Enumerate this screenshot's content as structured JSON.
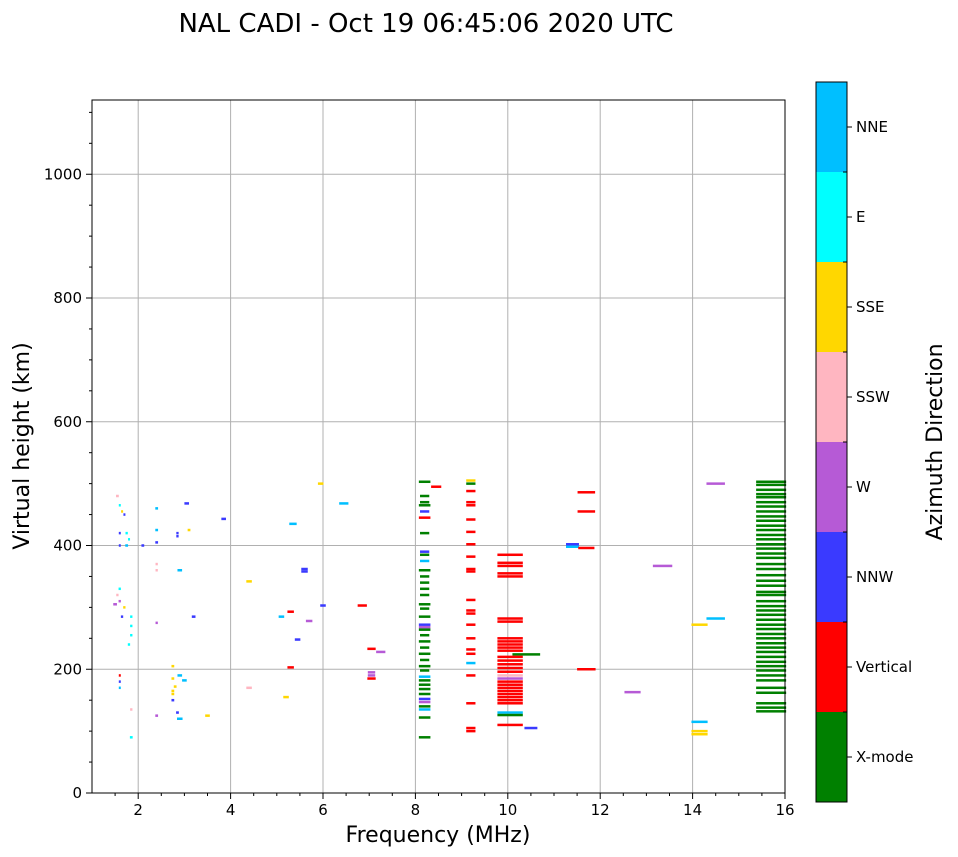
{
  "chart_data": {
    "type": "scatter",
    "title": "NAL CADI - Oct 19 06:45:06 2020 UTC",
    "xlabel": "Frequency (MHz)",
    "ylabel": "Virtual height (km)",
    "xlim": [
      1,
      16
    ],
    "ylim": [
      0,
      1120
    ],
    "x_ticks": [
      2,
      4,
      6,
      8,
      10,
      12,
      14,
      16
    ],
    "y_ticks": [
      0,
      200,
      400,
      600,
      800,
      1000
    ],
    "grid": true,
    "colorbar": {
      "label": "Azimuth Direction",
      "categories": [
        {
          "name": "X-mode",
          "color": "#008000"
        },
        {
          "name": "Vertical",
          "color": "#ff0000"
        },
        {
          "name": "NNW",
          "color": "#3a3aff"
        },
        {
          "name": "W",
          "color": "#b65ad6"
        },
        {
          "name": "SSW",
          "color": "#ffb6c1"
        },
        {
          "name": "SSE",
          "color": "#ffd700"
        },
        {
          "name": "E",
          "color": "#00ffff"
        },
        {
          "name": "NNE",
          "color": "#00bfff"
        }
      ]
    },
    "note": "Each point: [frequency MHz, virtual height km, frequency width MHz, category index]",
    "points": [
      [
        1.55,
        480,
        0.06,
        4
      ],
      [
        1.6,
        465,
        0.04,
        6
      ],
      [
        1.65,
        455,
        0.04,
        5
      ],
      [
        1.7,
        450,
        0.04,
        2
      ],
      [
        1.6,
        420,
        0.04,
        2
      ],
      [
        1.75,
        420,
        0.05,
        6
      ],
      [
        1.6,
        400,
        0.04,
        2
      ],
      [
        1.8,
        410,
        0.04,
        6
      ],
      [
        1.75,
        400,
        0.06,
        7
      ],
      [
        1.6,
        330,
        0.05,
        6
      ],
      [
        1.55,
        320,
        0.05,
        4
      ],
      [
        1.6,
        310,
        0.05,
        3
      ],
      [
        1.5,
        305,
        0.08,
        3
      ],
      [
        1.7,
        300,
        0.05,
        5
      ],
      [
        1.85,
        285,
        0.05,
        6
      ],
      [
        1.65,
        285,
        0.05,
        2
      ],
      [
        1.85,
        270,
        0.05,
        6
      ],
      [
        1.85,
        255,
        0.05,
        6
      ],
      [
        1.8,
        240,
        0.05,
        6
      ],
      [
        1.6,
        190,
        0.04,
        1
      ],
      [
        1.6,
        180,
        0.04,
        2
      ],
      [
        1.6,
        170,
        0.04,
        7
      ],
      [
        1.85,
        135,
        0.05,
        4
      ],
      [
        1.85,
        90,
        0.06,
        6
      ],
      [
        2.4,
        460,
        0.06,
        7
      ],
      [
        2.4,
        425,
        0.06,
        7
      ],
      [
        2.4,
        405,
        0.06,
        2
      ],
      [
        2.1,
        400,
        0.06,
        2
      ],
      [
        2.4,
        370,
        0.05,
        4
      ],
      [
        2.4,
        360,
        0.05,
        4
      ],
      [
        2.4,
        275,
        0.05,
        3
      ],
      [
        2.4,
        125,
        0.06,
        3
      ],
      [
        3.05,
        468,
        0.1,
        2
      ],
      [
        3.1,
        425,
        0.06,
        5
      ],
      [
        2.85,
        420,
        0.05,
        2
      ],
      [
        2.85,
        415,
        0.05,
        2
      ],
      [
        2.9,
        360,
        0.1,
        7
      ],
      [
        3.2,
        285,
        0.08,
        2
      ],
      [
        2.75,
        205,
        0.06,
        5
      ],
      [
        2.9,
        190,
        0.1,
        7
      ],
      [
        3.0,
        182,
        0.1,
        7
      ],
      [
        2.75,
        185,
        0.06,
        5
      ],
      [
        2.8,
        172,
        0.06,
        5
      ],
      [
        2.75,
        165,
        0.06,
        5
      ],
      [
        2.75,
        160,
        0.06,
        5
      ],
      [
        2.75,
        150,
        0.06,
        2
      ],
      [
        2.85,
        130,
        0.06,
        2
      ],
      [
        2.9,
        120,
        0.12,
        7
      ],
      [
        3.5,
        125,
        0.1,
        5
      ],
      [
        3.85,
        443,
        0.1,
        2
      ],
      [
        4.4,
        342,
        0.12,
        5
      ],
      [
        4.4,
        170,
        0.12,
        4
      ],
      [
        5.2,
        155,
        0.12,
        5
      ],
      [
        5.95,
        500,
        0.12,
        5
      ],
      [
        5.35,
        435,
        0.16,
        7
      ],
      [
        6.45,
        468,
        0.2,
        7
      ],
      [
        5.6,
        362,
        0.14,
        2
      ],
      [
        5.6,
        358,
        0.14,
        2
      ],
      [
        6.0,
        303,
        0.12,
        2
      ],
      [
        5.3,
        293,
        0.14,
        1
      ],
      [
        5.1,
        285,
        0.12,
        7
      ],
      [
        5.7,
        278,
        0.14,
        3
      ],
      [
        5.45,
        248,
        0.12,
        2
      ],
      [
        5.3,
        203,
        0.14,
        1
      ],
      [
        6.85,
        303,
        0.2,
        1
      ],
      [
        7.05,
        233,
        0.18,
        1
      ],
      [
        7.25,
        228,
        0.2,
        3
      ],
      [
        7.05,
        195,
        0.16,
        3
      ],
      [
        7.05,
        190,
        0.16,
        3
      ],
      [
        7.05,
        185,
        0.18,
        1
      ],
      [
        8.2,
        503,
        0.25,
        0
      ],
      [
        8.45,
        495,
        0.22,
        1
      ],
      [
        8.2,
        480,
        0.2,
        0
      ],
      [
        8.2,
        470,
        0.2,
        0
      ],
      [
        8.2,
        465,
        0.25,
        0
      ],
      [
        8.2,
        455,
        0.2,
        2
      ],
      [
        8.2,
        445,
        0.25,
        1
      ],
      [
        8.2,
        420,
        0.2,
        0
      ],
      [
        8.2,
        390,
        0.2,
        2
      ],
      [
        8.2,
        385,
        0.2,
        0
      ],
      [
        8.2,
        375,
        0.2,
        7
      ],
      [
        8.2,
        360,
        0.25,
        0
      ],
      [
        8.2,
        350,
        0.2,
        0
      ],
      [
        8.2,
        340,
        0.2,
        0
      ],
      [
        8.2,
        330,
        0.2,
        0
      ],
      [
        8.2,
        320,
        0.2,
        0
      ],
      [
        8.2,
        305,
        0.25,
        0
      ],
      [
        8.2,
        298,
        0.2,
        0
      ],
      [
        8.2,
        285,
        0.25,
        0
      ],
      [
        8.2,
        272,
        0.25,
        2
      ],
      [
        8.2,
        268,
        0.25,
        3
      ],
      [
        8.2,
        264,
        0.25,
        0
      ],
      [
        8.2,
        255,
        0.2,
        0
      ],
      [
        8.2,
        245,
        0.25,
        0
      ],
      [
        8.2,
        235,
        0.2,
        0
      ],
      [
        8.2,
        225,
        0.25,
        0
      ],
      [
        8.2,
        215,
        0.2,
        0
      ],
      [
        8.2,
        205,
        0.25,
        0
      ],
      [
        8.2,
        198,
        0.2,
        0
      ],
      [
        8.2,
        188,
        0.25,
        7
      ],
      [
        8.2,
        182,
        0.25,
        0
      ],
      [
        8.2,
        175,
        0.25,
        0
      ],
      [
        8.2,
        168,
        0.25,
        0
      ],
      [
        8.2,
        160,
        0.25,
        0
      ],
      [
        8.2,
        152,
        0.25,
        2
      ],
      [
        8.2,
        147,
        0.25,
        3
      ],
      [
        8.2,
        140,
        0.25,
        0
      ],
      [
        8.2,
        135,
        0.25,
        7
      ],
      [
        8.2,
        122,
        0.25,
        0
      ],
      [
        8.2,
        90,
        0.25,
        0
      ],
      [
        9.2,
        505,
        0.2,
        5
      ],
      [
        9.2,
        500,
        0.2,
        0
      ],
      [
        9.2,
        488,
        0.2,
        1
      ],
      [
        9.2,
        470,
        0.2,
        1
      ],
      [
        9.2,
        465,
        0.2,
        1
      ],
      [
        9.2,
        442,
        0.2,
        1
      ],
      [
        9.2,
        422,
        0.2,
        1
      ],
      [
        9.2,
        402,
        0.2,
        1
      ],
      [
        9.2,
        382,
        0.2,
        1
      ],
      [
        9.2,
        362,
        0.2,
        1
      ],
      [
        9.2,
        358,
        0.2,
        1
      ],
      [
        9.2,
        312,
        0.2,
        1
      ],
      [
        9.2,
        295,
        0.2,
        1
      ],
      [
        9.2,
        290,
        0.2,
        1
      ],
      [
        9.2,
        272,
        0.2,
        1
      ],
      [
        9.2,
        250,
        0.2,
        1
      ],
      [
        9.2,
        232,
        0.2,
        1
      ],
      [
        9.2,
        225,
        0.2,
        1
      ],
      [
        9.2,
        210,
        0.2,
        7
      ],
      [
        9.2,
        190,
        0.2,
        1
      ],
      [
        9.2,
        145,
        0.2,
        1
      ],
      [
        9.2,
        105,
        0.2,
        1
      ],
      [
        9.2,
        100,
        0.2,
        1
      ],
      [
        10.05,
        385,
        0.55,
        1
      ],
      [
        10.05,
        372,
        0.55,
        1
      ],
      [
        10.05,
        367,
        0.55,
        1
      ],
      [
        10.05,
        355,
        0.55,
        1
      ],
      [
        10.05,
        350,
        0.55,
        1
      ],
      [
        10.05,
        282,
        0.55,
        1
      ],
      [
        10.05,
        277,
        0.55,
        1
      ],
      [
        10.05,
        250,
        0.55,
        1
      ],
      [
        10.05,
        245,
        0.55,
        1
      ],
      [
        10.05,
        240,
        0.55,
        1
      ],
      [
        10.05,
        235,
        0.55,
        1
      ],
      [
        10.05,
        230,
        0.55,
        1
      ],
      [
        10.4,
        224,
        0.6,
        0
      ],
      [
        10.05,
        220,
        0.55,
        1
      ],
      [
        10.05,
        214,
        0.55,
        1
      ],
      [
        10.05,
        208,
        0.55,
        1
      ],
      [
        10.05,
        202,
        0.55,
        1
      ],
      [
        10.05,
        196,
        0.55,
        1
      ],
      [
        10.05,
        190,
        0.55,
        4
      ],
      [
        10.05,
        185,
        0.55,
        3
      ],
      [
        10.05,
        180,
        0.55,
        1
      ],
      [
        10.05,
        175,
        0.55,
        1
      ],
      [
        10.05,
        170,
        0.55,
        1
      ],
      [
        10.05,
        165,
        0.55,
        1
      ],
      [
        10.05,
        160,
        0.55,
        1
      ],
      [
        10.05,
        155,
        0.55,
        1
      ],
      [
        10.05,
        150,
        0.55,
        1
      ],
      [
        10.05,
        145,
        0.55,
        1
      ],
      [
        10.05,
        130,
        0.55,
        7
      ],
      [
        10.05,
        126,
        0.55,
        0
      ],
      [
        10.05,
        110,
        0.55,
        1
      ],
      [
        10.5,
        105,
        0.28,
        2
      ],
      [
        11.4,
        402,
        0.28,
        2
      ],
      [
        11.4,
        398,
        0.28,
        7
      ],
      [
        11.7,
        396,
        0.35,
        1
      ],
      [
        11.7,
        486,
        0.38,
        1
      ],
      [
        11.7,
        455,
        0.38,
        1
      ],
      [
        11.7,
        200,
        0.4,
        1
      ],
      [
        12.7,
        163,
        0.35,
        3
      ],
      [
        13.35,
        367,
        0.42,
        3
      ],
      [
        14.15,
        272,
        0.35,
        5
      ],
      [
        14.5,
        282,
        0.4,
        7
      ],
      [
        14.5,
        500,
        0.4,
        3
      ],
      [
        14.15,
        115,
        0.35,
        7
      ],
      [
        14.15,
        100,
        0.35,
        5
      ],
      [
        14.15,
        95,
        0.35,
        5
      ],
      [
        15.7,
        503,
        0.65,
        0
      ],
      [
        15.7,
        498,
        0.65,
        0
      ],
      [
        15.7,
        490,
        0.65,
        0
      ],
      [
        15.7,
        483,
        0.65,
        0
      ],
      [
        15.7,
        478,
        0.65,
        0
      ],
      [
        15.7,
        470,
        0.65,
        0
      ],
      [
        15.7,
        463,
        0.65,
        0
      ],
      [
        15.7,
        455,
        0.65,
        0
      ],
      [
        15.7,
        447,
        0.65,
        0
      ],
      [
        15.7,
        440,
        0.65,
        0
      ],
      [
        15.7,
        432,
        0.65,
        0
      ],
      [
        15.7,
        425,
        0.65,
        0
      ],
      [
        15.7,
        417,
        0.65,
        0
      ],
      [
        15.7,
        410,
        0.65,
        0
      ],
      [
        15.7,
        402,
        0.65,
        0
      ],
      [
        15.7,
        395,
        0.65,
        0
      ],
      [
        15.7,
        387,
        0.65,
        0
      ],
      [
        15.7,
        380,
        0.65,
        0
      ],
      [
        15.7,
        370,
        0.65,
        0
      ],
      [
        15.7,
        362,
        0.65,
        0
      ],
      [
        15.7,
        352,
        0.65,
        0
      ],
      [
        15.7,
        343,
        0.65,
        0
      ],
      [
        15.7,
        335,
        0.65,
        0
      ],
      [
        15.7,
        325,
        0.65,
        0
      ],
      [
        15.7,
        320,
        0.65,
        0
      ],
      [
        15.7,
        310,
        0.65,
        0
      ],
      [
        15.7,
        302,
        0.65,
        0
      ],
      [
        15.7,
        295,
        0.65,
        0
      ],
      [
        15.7,
        288,
        0.65,
        0
      ],
      [
        15.7,
        280,
        0.65,
        0
      ],
      [
        15.7,
        272,
        0.65,
        0
      ],
      [
        15.7,
        265,
        0.65,
        0
      ],
      [
        15.7,
        257,
        0.65,
        0
      ],
      [
        15.7,
        250,
        0.65,
        0
      ],
      [
        15.7,
        242,
        0.65,
        0
      ],
      [
        15.7,
        235,
        0.65,
        0
      ],
      [
        15.7,
        228,
        0.65,
        0
      ],
      [
        15.7,
        220,
        0.65,
        0
      ],
      [
        15.7,
        212,
        0.65,
        0
      ],
      [
        15.7,
        205,
        0.65,
        0
      ],
      [
        15.7,
        198,
        0.65,
        0
      ],
      [
        15.7,
        190,
        0.65,
        0
      ],
      [
        15.7,
        182,
        0.65,
        0
      ],
      [
        15.7,
        170,
        0.65,
        0
      ],
      [
        15.7,
        162,
        0.65,
        0
      ],
      [
        15.7,
        145,
        0.65,
        0
      ],
      [
        15.7,
        138,
        0.65,
        0
      ],
      [
        15.7,
        132,
        0.65,
        0
      ]
    ]
  }
}
